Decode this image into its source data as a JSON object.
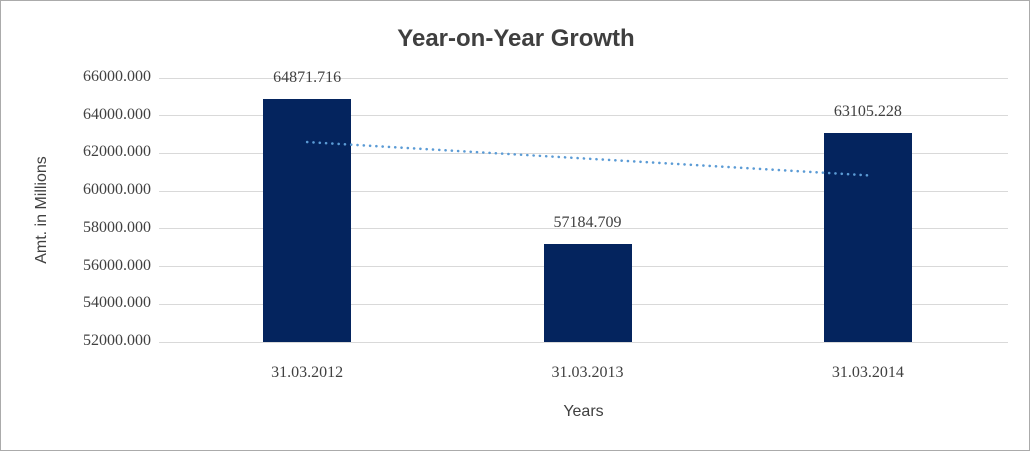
{
  "chart_data": {
    "type": "bar",
    "title": "Year-on-Year Growth",
    "xlabel": "Years",
    "ylabel": "Amt. in Millions",
    "categories": [
      "31.03.2012",
      "31.03.2013",
      "31.03.2014"
    ],
    "values": [
      64871.716,
      57184.709,
      63105.228
    ],
    "data_labels": [
      "64871.716",
      "57184.709",
      "63105.228"
    ],
    "ytick_labels": [
      "66000.000",
      "64000.000",
      "62000.000",
      "60000.000",
      "58000.000",
      "56000.000",
      "54000.000",
      "52000.000"
    ],
    "ytick_values": [
      66000,
      64000,
      62000,
      60000,
      58000,
      56000,
      54000,
      52000
    ],
    "ylim": [
      52000,
      66000
    ],
    "ytick_step": 2000,
    "grid": true,
    "legend": "none",
    "bar_color": "#04245E",
    "gridline_color": "#D9D9D9",
    "title_color": "#3F3F3F",
    "label_color": "#404040",
    "trendline": {
      "type": "linear",
      "style": "dotted",
      "color": "#5B9BD5",
      "values": [
        62603.795,
        61720.551,
        60837.307
      ]
    }
  }
}
